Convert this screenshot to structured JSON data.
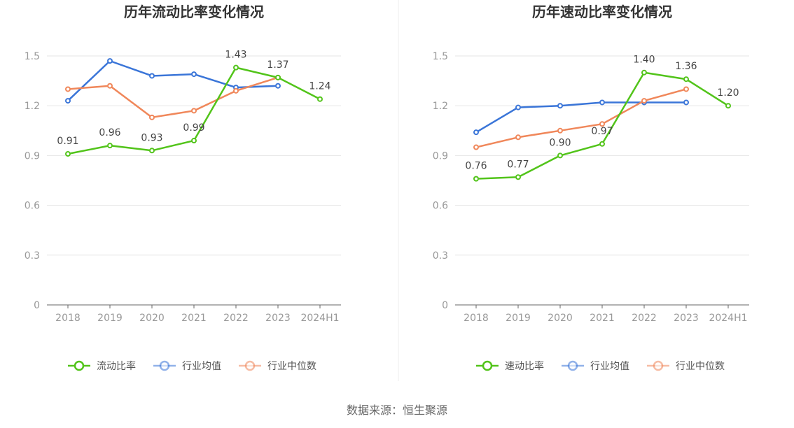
{
  "source": "数据来源：恒生聚源",
  "chart_data": [
    {
      "type": "line",
      "title": "历年流动比率变化情况",
      "categories": [
        "2018",
        "2019",
        "2020",
        "2021",
        "2022",
        "2023",
        "2024H1"
      ],
      "ylim": [
        0,
        1.5
      ],
      "yticks": [
        "0",
        "0.3",
        "0.6",
        "0.9",
        "1.2",
        "1.5"
      ],
      "grid": true,
      "legend_position": "bottom",
      "series": [
        {
          "name": "流动比率",
          "color": "#52c41a",
          "labeled": true,
          "labels": [
            "0.91",
            "0.96",
            "0.93",
            "0.99",
            "1.43",
            "1.37",
            "1.24"
          ],
          "values": [
            0.91,
            0.96,
            0.93,
            0.99,
            1.43,
            1.37,
            1.24
          ]
        },
        {
          "name": "行业均值",
          "color": "#3a75d8",
          "labeled": false,
          "values": [
            1.23,
            1.47,
            1.38,
            1.39,
            1.31,
            1.32,
            null
          ]
        },
        {
          "name": "行业中位数",
          "color": "#f0875a",
          "labeled": false,
          "values": [
            1.3,
            1.32,
            1.13,
            1.17,
            1.29,
            1.37,
            null
          ]
        }
      ]
    },
    {
      "type": "line",
      "title": "历年速动比率变化情况",
      "categories": [
        "2018",
        "2019",
        "2020",
        "2021",
        "2022",
        "2023",
        "2024H1"
      ],
      "ylim": [
        0,
        1.5
      ],
      "yticks": [
        "0",
        "0.3",
        "0.6",
        "0.9",
        "1.2",
        "1.5"
      ],
      "grid": true,
      "legend_position": "bottom",
      "series": [
        {
          "name": "速动比率",
          "color": "#52c41a",
          "labeled": true,
          "labels": [
            "0.76",
            "0.77",
            "0.90",
            "0.97",
            "1.40",
            "1.36",
            "1.20"
          ],
          "values": [
            0.76,
            0.77,
            0.9,
            0.97,
            1.4,
            1.36,
            1.2
          ]
        },
        {
          "name": "行业均值",
          "color": "#3a75d8",
          "labeled": false,
          "values": [
            1.04,
            1.19,
            1.2,
            1.22,
            1.22,
            1.22,
            null
          ]
        },
        {
          "name": "行业中位数",
          "color": "#f0875a",
          "labeled": false,
          "values": [
            0.95,
            1.01,
            1.05,
            1.09,
            1.23,
            1.3,
            null
          ]
        }
      ]
    }
  ]
}
